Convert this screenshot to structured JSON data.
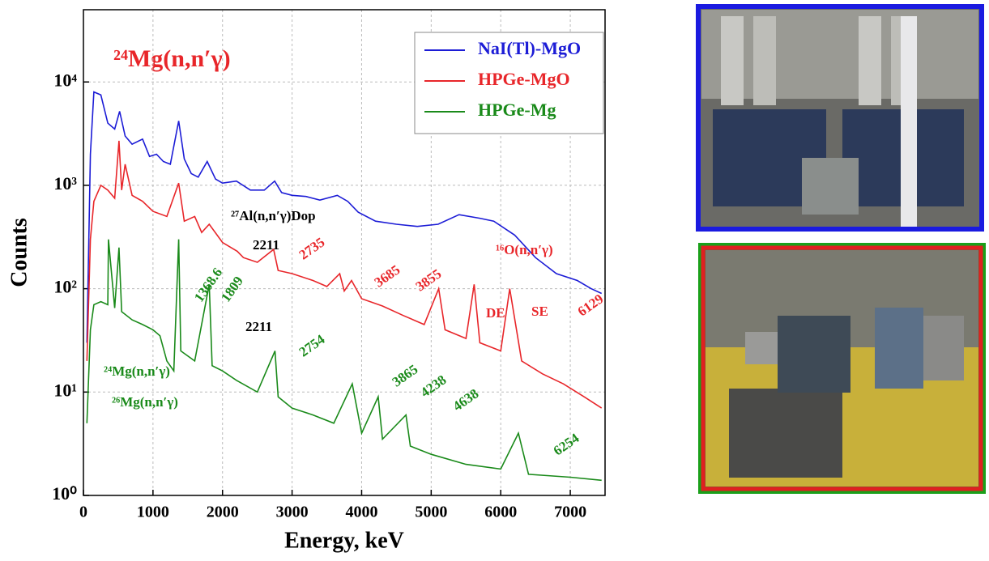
{
  "chart_data": {
    "type": "line",
    "title": "²⁴Mg(n,n′γ)",
    "title_color": "#e8262a",
    "xlabel": "Energy, keV",
    "ylabel": "Counts",
    "xlim": [
      0,
      7500
    ],
    "xticks": [
      0,
      1000,
      2000,
      3000,
      4000,
      5000,
      6000,
      7000
    ],
    "ylim": [
      1,
      50000
    ],
    "ylog": true,
    "yticks": [
      {
        "value": 1,
        "label": "10⁰"
      },
      {
        "value": 10,
        "label": "10¹"
      },
      {
        "value": 100,
        "label": "10²"
      },
      {
        "value": 1000,
        "label": "10³"
      },
      {
        "value": 10000,
        "label": "10⁴"
      }
    ],
    "grid": true,
    "legend": "upper right",
    "series": [
      {
        "name": "NaI(Tl)-MgO",
        "color": "#1c1cd6",
        "x": [
          50,
          100,
          150,
          250,
          350,
          450,
          520,
          600,
          700,
          850,
          950,
          1050,
          1150,
          1250,
          1370,
          1450,
          1550,
          1650,
          1780,
          1900,
          2000,
          2200,
          2400,
          2600,
          2750,
          2850,
          3000,
          3200,
          3400,
          3650,
          3800,
          3950,
          4200,
          4500,
          4800,
          5100,
          5400,
          5700,
          5900,
          6200,
          6500,
          6800,
          7100,
          7300,
          7450
        ],
        "values": [
          30,
          2000,
          8000,
          7500,
          4000,
          3500,
          5200,
          3000,
          2500,
          2800,
          1900,
          2000,
          1700,
          1600,
          4200,
          1800,
          1300,
          1200,
          1700,
          1150,
          1050,
          1100,
          900,
          900,
          1100,
          850,
          800,
          780,
          720,
          800,
          700,
          550,
          450,
          420,
          400,
          420,
          520,
          480,
          450,
          330,
          200,
          140,
          120,
          100,
          90
        ]
      },
      {
        "name": "HPGe-MgO",
        "color": "#e8262a",
        "x": [
          50,
          100,
          150,
          250,
          350,
          450,
          511,
          550,
          600,
          700,
          850,
          1000,
          1200,
          1370,
          1450,
          1600,
          1700,
          1809,
          2000,
          2211,
          2300,
          2500,
          2735,
          2800,
          3000,
          3300,
          3500,
          3685,
          3750,
          3855,
          4000,
          4300,
          4600,
          4900,
          5108,
          5200,
          5500,
          5618,
          5700,
          6000,
          6129,
          6300,
          6600,
          6900,
          7200,
          7450
        ],
        "values": [
          20,
          300,
          700,
          1000,
          900,
          750,
          2700,
          900,
          1600,
          800,
          700,
          560,
          500,
          1050,
          450,
          500,
          350,
          420,
          280,
          230,
          200,
          180,
          240,
          150,
          140,
          120,
          105,
          140,
          95,
          120,
          80,
          68,
          55,
          45,
          100,
          40,
          33,
          110,
          30,
          25,
          100,
          20,
          15,
          12,
          9,
          7
        ]
      },
      {
        "name": "HPGe-Mg",
        "color": "#1a8a1a",
        "x": [
          50,
          100,
          150,
          250,
          350,
          360,
          450,
          511,
          550,
          700,
          850,
          1000,
          1100,
          1200,
          1300,
          1369,
          1400,
          1600,
          1809,
          1850,
          2000,
          2200,
          2500,
          2754,
          2800,
          3000,
          3300,
          3600,
          3865,
          4000,
          4238,
          4300,
          4638,
          4700,
          5000,
          5500,
          6000,
          6254,
          6400,
          7000,
          7450
        ],
        "values": [
          5,
          40,
          70,
          75,
          70,
          300,
          65,
          250,
          60,
          50,
          45,
          40,
          35,
          20,
          16,
          300,
          25,
          20,
          110,
          18,
          16,
          13,
          10,
          25,
          9,
          7,
          6,
          5,
          12,
          4,
          9,
          3.5,
          6,
          3,
          2.5,
          2,
          1.8,
          4,
          1.6,
          1.5,
          1.4
        ]
      }
    ],
    "annotations": [
      {
        "text": "²⁷Al(n,n′γ)Dop",
        "color": "#000000"
      },
      {
        "text": "2211",
        "color": "#000000"
      },
      {
        "text": "2735",
        "color": "#e8262a"
      },
      {
        "text": "3685",
        "color": "#e8262a"
      },
      {
        "text": "3855",
        "color": "#e8262a"
      },
      {
        "text": "¹⁶O(n,n′γ)",
        "color": "#e8262a"
      },
      {
        "text": "DE",
        "color": "#e8262a"
      },
      {
        "text": "SE",
        "color": "#e8262a"
      },
      {
        "text": "6129",
        "color": "#e8262a"
      },
      {
        "text": "1368.6",
        "color": "#1a8a1a"
      },
      {
        "text": "1809",
        "color": "#1a8a1a"
      },
      {
        "text": "2211",
        "color": "#000000"
      },
      {
        "text": "2754",
        "color": "#1a8a1a"
      },
      {
        "text": "²⁴Mg(n,n′γ)",
        "color": "#1a8a1a"
      },
      {
        "text": "²⁶Mg(n,n′γ)",
        "color": "#1a8a1a"
      },
      {
        "text": "3865",
        "color": "#1a8a1a"
      },
      {
        "text": "4238",
        "color": "#1a8a1a"
      },
      {
        "text": "4638",
        "color": "#1a8a1a"
      },
      {
        "text": "6254",
        "color": "#1a8a1a"
      }
    ]
  }
}
